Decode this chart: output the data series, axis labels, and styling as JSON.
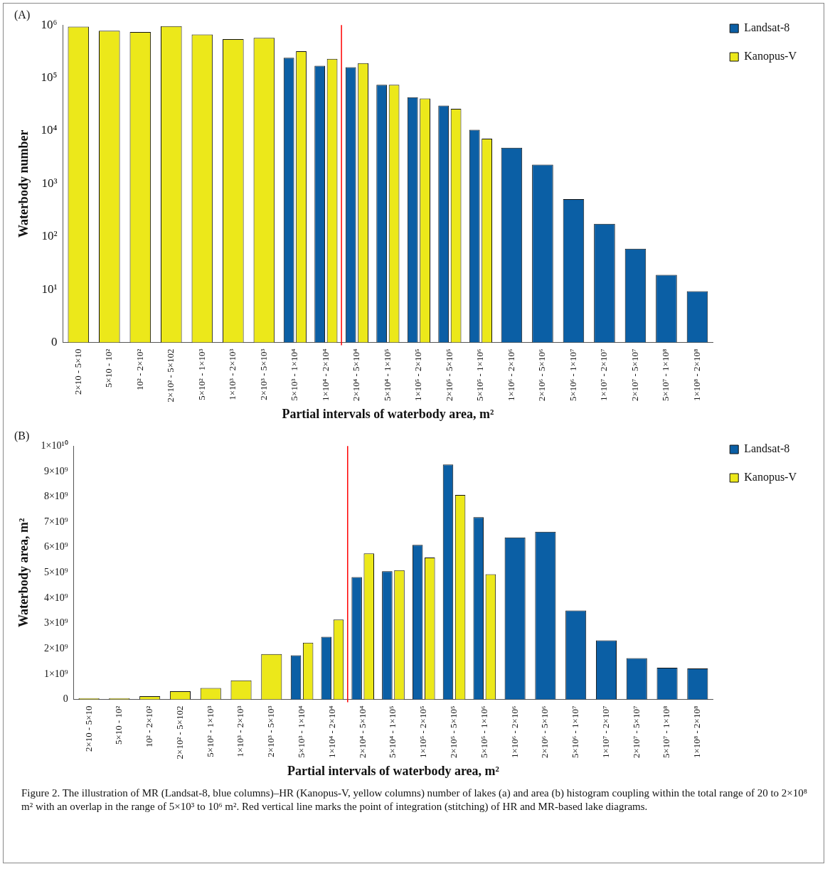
{
  "chart_data": [
    {
      "type": "bar",
      "title": "(A)",
      "xlabel": "Partial intervals of waterbody area, m²",
      "ylabel": "Waterbody number",
      "categories": [
        "2×10 - 5×10",
        "5×10 - 10²",
        "10² - 2×10²",
        "2×10² - 5×102",
        "5×10² - 1×10³",
        "1×10³ - 2×10³",
        "2×10³ - 5×10³",
        "5×10³ - 1×10⁴",
        "1×10⁴ - 2×10⁴",
        "2×10⁴ - 5×10⁴",
        "5×10⁴ - 1×10⁵",
        "1×10⁵ - 2×10⁵",
        "2×10⁵ - 5×10⁵",
        "5×10⁵ - 1×10⁶",
        "1×10⁶ - 2×10⁶",
        "2×10⁶ - 5×10⁶",
        "5×10⁶ - 1×10⁷",
        "1×10⁷ - 2×10⁷",
        "2×10⁷ - 5×10⁷",
        "5×10⁷ - 1×10⁸",
        "1×10⁸ - 2×10⁸"
      ],
      "series": [
        {
          "name": "Landsat-8",
          "color": "#0b5fa5",
          "values": [
            null,
            null,
            null,
            null,
            null,
            null,
            null,
            240000,
            170000,
            160000,
            74000,
            43000,
            30000,
            10500,
            4800,
            2300,
            510,
            175,
            59,
            19,
            9.3
          ]
        },
        {
          "name": "Kanopus-V",
          "color": "#ece81a",
          "values": [
            930000,
            780000,
            740000,
            950000,
            660000,
            540000,
            570000,
            320000,
            230000,
            190000,
            74000,
            41000,
            26000,
            7100,
            null,
            null,
            null,
            null,
            null,
            null,
            null
          ]
        }
      ],
      "log": "y",
      "ylim": [
        0,
        1000000
      ],
      "yticks": [
        0,
        {
          "value": 10,
          "label": "10¹"
        },
        {
          "value": 100,
          "label": "10²"
        },
        {
          "value": 1000,
          "label": "10³"
        },
        {
          "value": 10000,
          "label": "10⁴"
        },
        {
          "value": 100000,
          "label": "10⁵"
        },
        {
          "value": 1000000,
          "label": "10⁶"
        }
      ],
      "grid": false,
      "legend": "top right",
      "ref_lines": [
        {
          "axis": "x",
          "value": "2×10⁴ - 5×10⁴",
          "color": "#ff0000"
        }
      ]
    },
    {
      "type": "bar",
      "title": "(B)",
      "xlabel": "Partial intervals of waterbody area, m²",
      "ylabel": "Waterbody area, m²",
      "categories": [
        "2×10 - 5×10",
        "5×10 - 10²",
        "10² - 2×10²",
        "2×10² - 5×102",
        "5×10² - 1×10³",
        "1×10³ - 2×10³",
        "2×10³ - 5×10³",
        "5×10³ - 1×10⁴",
        "1×10⁴ - 2×10⁴",
        "2×10⁴ - 5×10⁴",
        "5×10⁴ - 1×10⁵",
        "1×10⁵ - 2×10⁵",
        "2×10⁵ - 5×10⁵",
        "5×10⁵ - 1×10⁶",
        "1×10⁶ - 2×10⁶",
        "2×10⁶ - 5×10⁶",
        "5×10⁶ - 1×10⁷",
        "1×10⁷ - 2×10⁷",
        "2×10⁷ - 5×10⁷",
        "5×10⁷ - 1×10⁸",
        "1×10⁸ - 2×10⁸"
      ],
      "series": [
        {
          "name": "Landsat-8",
          "color": "#0b5fa5",
          "values": [
            null,
            null,
            null,
            null,
            null,
            null,
            null,
            1740000000,
            2470000000,
            4830000000,
            5060000000,
            6100000000,
            9270000000,
            7190000000,
            6390000000,
            6620000000,
            3510000000,
            2330000000,
            1630000000,
            1250000000,
            1220000000
          ]
        },
        {
          "name": "Kanopus-V",
          "color": "#ece81a",
          "values": [
            50000000,
            50000000,
            130000000,
            320000000,
            450000000,
            750000000,
            1790000000,
            2240000000,
            3150000000,
            5760000000,
            5100000000,
            5600000000,
            8070000000,
            4940000000,
            null,
            null,
            null,
            null,
            null,
            null,
            null
          ]
        }
      ],
      "ylim": [
        0,
        10000000000
      ],
      "yticks": [
        0,
        {
          "value": 1000000000,
          "label": "1×10⁹"
        },
        {
          "value": 2000000000,
          "label": "2×10⁹"
        },
        {
          "value": 3000000000,
          "label": "3×10⁹"
        },
        {
          "value": 4000000000,
          "label": "4×10⁹"
        },
        {
          "value": 5000000000,
          "label": "5×10⁹"
        },
        {
          "value": 6000000000,
          "label": "6×10⁹"
        },
        {
          "value": 7000000000,
          "label": "7×10⁹"
        },
        {
          "value": 8000000000,
          "label": "8×10⁹"
        },
        {
          "value": 9000000000,
          "label": "9×10⁹"
        },
        {
          "value": 10000000000,
          "label": "1×10¹⁰"
        }
      ],
      "grid": false,
      "legend": "top right",
      "ref_lines": [
        {
          "axis": "x",
          "value": "2×10⁴ - 5×10⁴",
          "color": "#ff0000"
        }
      ],
      "annotations": [
        "Figure 2. The illustration of MR (Landsat-8, blue columns)–HR (Kanopus-V, yellow columns) number of lakes (a) and area (b) histogram coupling within the total range of 20 to 2×10⁸ m² with an overlap in the range of 5×10³ to 10⁶ m². Red vertical line marks the point of integration (stitching) of HR and MR-based lake diagrams."
      ]
    }
  ]
}
